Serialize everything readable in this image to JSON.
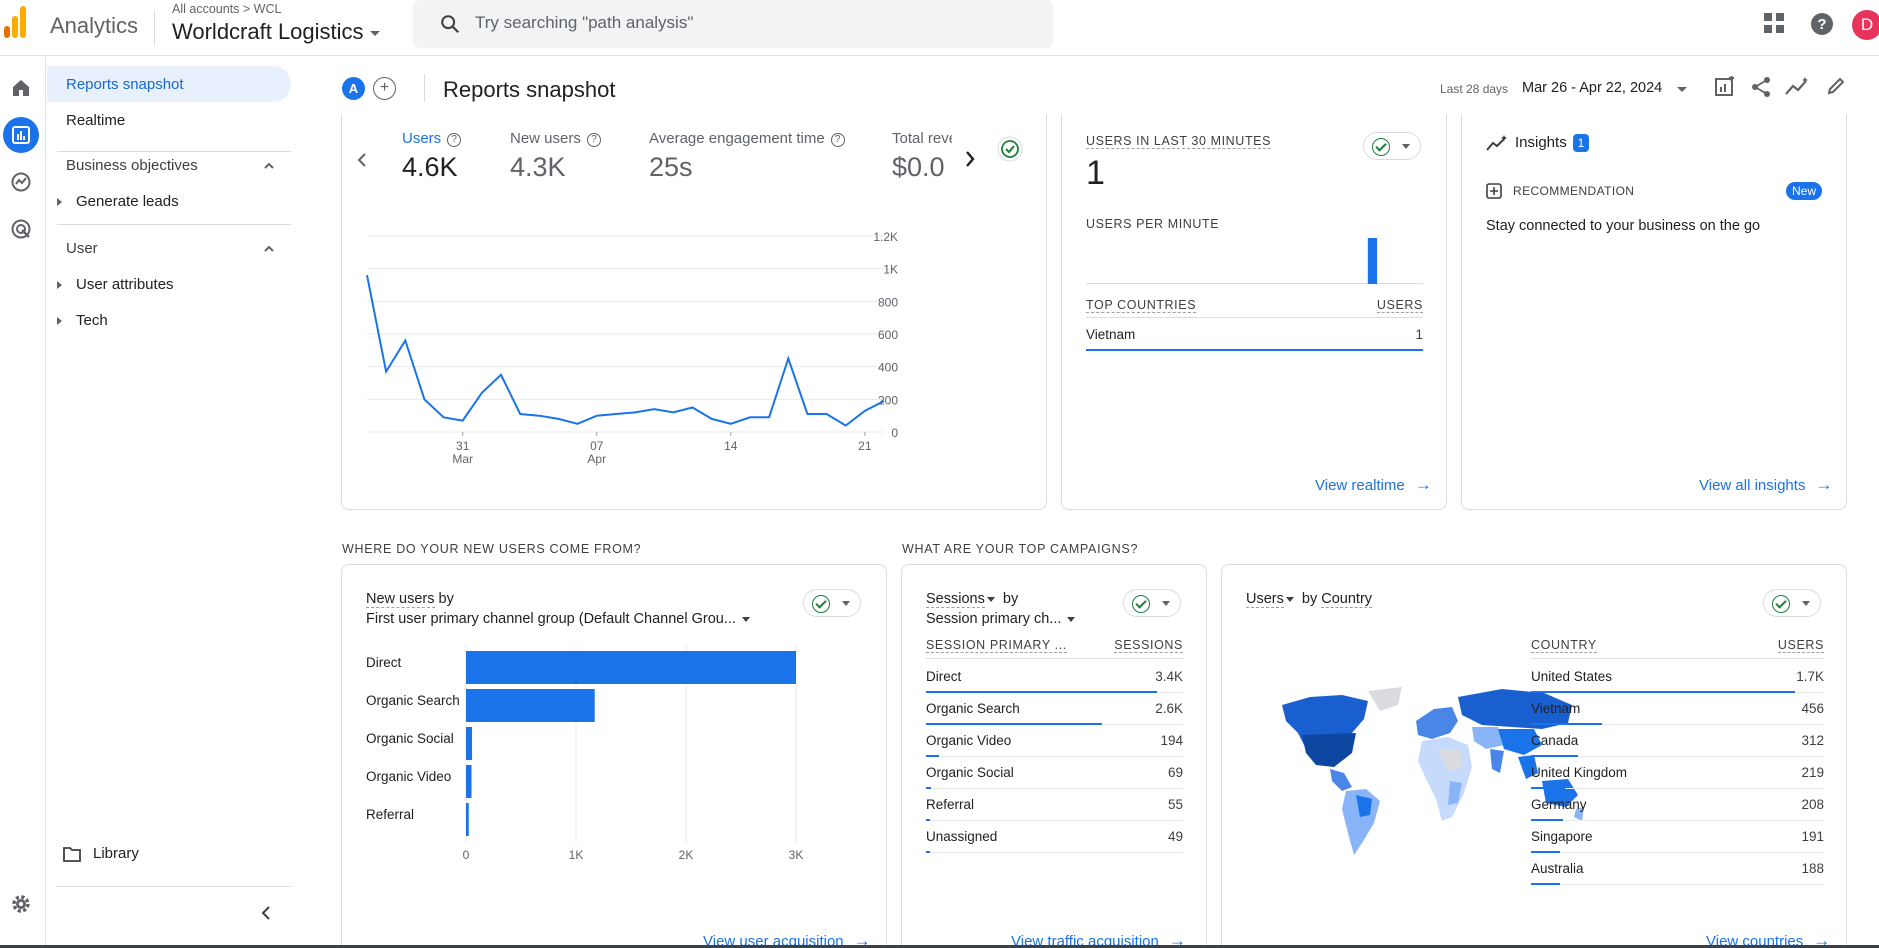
{
  "header": {
    "product": "Analytics",
    "breadcrumb": "All accounts > WCL",
    "account": "Worldcraft Logistics",
    "search_placeholder": "Try searching \"path analysis\"",
    "avatar_letter": "D",
    "logo_colors": [
      "#f9ab00",
      "#e37400",
      "#e37400"
    ]
  },
  "sidenav": {
    "items": [
      {
        "label": "Reports snapshot",
        "active": true
      },
      {
        "label": "Realtime",
        "active": false
      }
    ],
    "sections": [
      {
        "label": "Business objectives",
        "children": [
          "Generate leads"
        ]
      },
      {
        "label": "User",
        "children": [
          "User attributes",
          "Tech"
        ]
      }
    ],
    "library": "Library"
  },
  "page": {
    "badge": "A",
    "title": "Reports snapshot",
    "date_label": "Last 28 days",
    "date_range": "Mar 26 - Apr 22, 2024"
  },
  "overview": {
    "metrics": [
      {
        "label": "Users",
        "value": "4.6K",
        "active": true
      },
      {
        "label": "New users",
        "value": "4.3K",
        "active": false
      },
      {
        "label": "Average engagement time",
        "value": "25s",
        "active": false
      },
      {
        "label": "Total reve",
        "value": "$0.0",
        "active": false
      }
    ]
  },
  "chart_data": [
    {
      "type": "line",
      "x_ticks": [
        [
          "31",
          "Mar"
        ],
        [
          "07",
          "Apr"
        ],
        [
          "14",
          ""
        ],
        [
          "21",
          ""
        ]
      ],
      "y_ticks": [
        "1.2K",
        "1K",
        "800",
        "600",
        "400",
        "200",
        "0"
      ],
      "ylim": [
        0,
        1200
      ],
      "series": [
        {
          "values": [
            960,
            370,
            560,
            200,
            90,
            70,
            240,
            350,
            110,
            100,
            80,
            50,
            100,
            110,
            120,
            140,
            120,
            150,
            80,
            50,
            90,
            90,
            450,
            110,
            110,
            40,
            130,
            190
          ]
        }
      ],
      "color": "#1a73e8"
    },
    {
      "type": "bar",
      "orientation": "horizontal",
      "title": "New users by First user primary channel group (Default Channel Grou...",
      "categories": [
        "Direct",
        "Organic Search",
        "Organic Social",
        "Organic Video",
        "Referral"
      ],
      "values": [
        3000,
        1170,
        55,
        50,
        25
      ],
      "x_ticks": [
        "0",
        "1K",
        "2K",
        "3K"
      ],
      "xlim": [
        0,
        3000
      ],
      "color": "#1a73e8"
    }
  ],
  "realtime": {
    "title": "USERS IN LAST 30 MINUTES",
    "value": "1",
    "per_minute_label": "USERS PER MINUTE",
    "per_minute": [
      0,
      0,
      0,
      0,
      0,
      0,
      0,
      0,
      0,
      0,
      0,
      0,
      0,
      0,
      0,
      0,
      0,
      0,
      0,
      0,
      0,
      0,
      0,
      0,
      0,
      1,
      0,
      0,
      0,
      0
    ],
    "countries_header": "TOP COUNTRIES",
    "users_header": "USERS",
    "countries": [
      {
        "name": "Vietnam",
        "users": "1"
      }
    ],
    "link": "View realtime"
  },
  "insights": {
    "title": "Insights",
    "count": "1",
    "recommendation_label": "RECOMMENDATION",
    "new_badge": "New",
    "text": "Stay connected to your business on the go",
    "link": "View all insights"
  },
  "sections": {
    "acquisition_title": "WHERE DO YOUR NEW USERS COME FROM?",
    "campaigns_title": "WHAT ARE YOUR TOP CAMPAIGNS?"
  },
  "acquisition": {
    "metric": "New users",
    "by": "by",
    "dimension": "First user primary channel group (Default Channel Grou...",
    "link": "View user acquisition"
  },
  "campaigns": {
    "metric": "Sessions",
    "by": "by",
    "dimension": "Session primary ch...",
    "col1": "SESSION PRIMARY ...",
    "col2": "SESSIONS",
    "rows": [
      {
        "label": "Direct",
        "value": "3.4K",
        "share": 1.0
      },
      {
        "label": "Organic Search",
        "value": "2.6K",
        "share": 0.76
      },
      {
        "label": "Organic Video",
        "value": "194",
        "share": 0.057
      },
      {
        "label": "Organic Social",
        "value": "69",
        "share": 0.02
      },
      {
        "label": "Referral",
        "value": "55",
        "share": 0.016
      },
      {
        "label": "Unassigned",
        "value": "49",
        "share": 0.014
      }
    ],
    "link": "View traffic acquisition"
  },
  "countries": {
    "metric": "Users",
    "by": "by",
    "dimension": "Country",
    "col1": "COUNTRY",
    "col2": "USERS",
    "rows": [
      {
        "label": "United States",
        "value": "1.7K",
        "share": 1.0
      },
      {
        "label": "Vietnam",
        "value": "456",
        "share": 0.27
      },
      {
        "label": "Canada",
        "value": "312",
        "share": 0.18
      },
      {
        "label": "United Kingdom",
        "value": "219",
        "share": 0.13
      },
      {
        "label": "Germany",
        "value": "208",
        "share": 0.12
      },
      {
        "label": "Singapore",
        "value": "191",
        "share": 0.11
      },
      {
        "label": "Australia",
        "value": "188",
        "share": 0.11
      }
    ],
    "link": "View countries"
  }
}
